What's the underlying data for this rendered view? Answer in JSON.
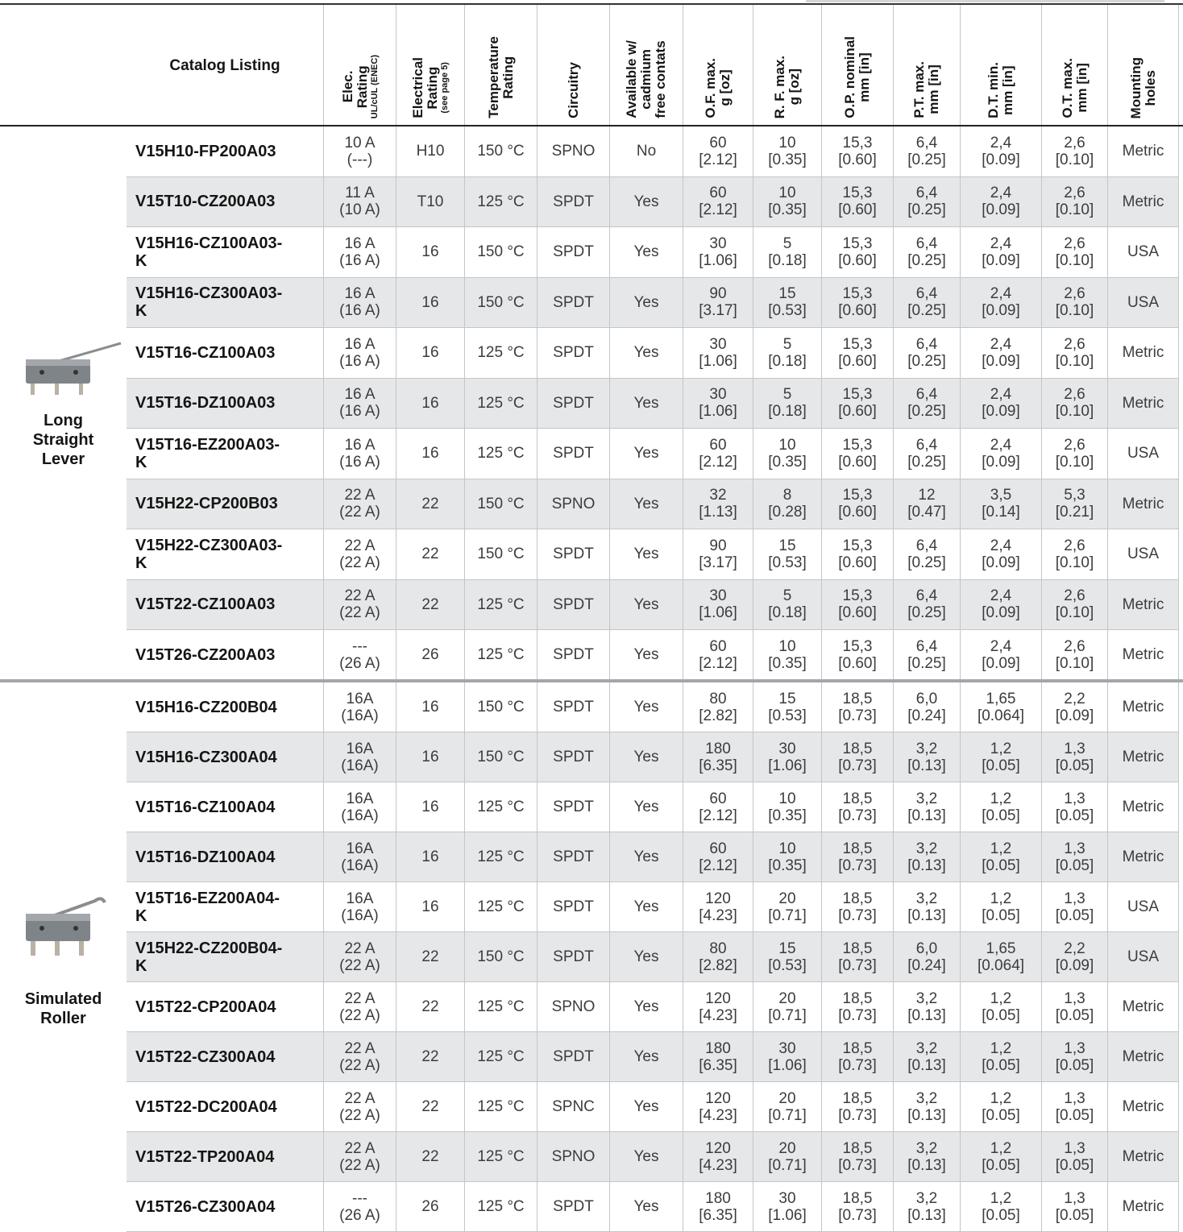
{
  "table": {
    "headers": [
      {
        "title": [
          "Catalog Listing"
        ]
      },
      {
        "title": [
          "Elec.",
          "Rating"
        ],
        "note": "UL/cUL (ENEC)"
      },
      {
        "title": [
          "Electrical",
          "Rating"
        ],
        "note": "(see page 5)"
      },
      {
        "title": [
          "Temperature",
          "Rating"
        ]
      },
      {
        "title": [
          "Circuitry"
        ]
      },
      {
        "title": [
          "Available w/",
          "cadmium",
          "free contats"
        ]
      },
      {
        "title": [
          "O.F. max.",
          "g [oz]"
        ]
      },
      {
        "title": [
          "R. F. max.",
          "g [oz]"
        ]
      },
      {
        "title": [
          "O.P. nominal",
          "mm [in]"
        ]
      },
      {
        "title": [
          "P.T. max.",
          "mm [in]"
        ]
      },
      {
        "title": [
          "D.T. min.",
          "mm [in]"
        ]
      },
      {
        "title": [
          "O.T. max.",
          "mm [in]"
        ]
      },
      {
        "title": [
          "Mounting",
          "holes"
        ]
      }
    ],
    "groups": [
      {
        "label": [
          "Long",
          "Straight",
          "Lever"
        ],
        "rows": [
          [
            "V15H10-FP200A03",
            [
              "10 A",
              "(---)"
            ],
            "H10",
            "150 °C",
            "SPNO",
            "No",
            [
              "60",
              "[2.12]"
            ],
            [
              "10",
              "[0.35]"
            ],
            [
              "15,3",
              "[0.60]"
            ],
            [
              "6,4",
              "[0.25]"
            ],
            [
              "2,4",
              "[0.09]"
            ],
            [
              "2,6",
              "[0.10]"
            ],
            "Metric"
          ],
          [
            "V15T10-CZ200A03",
            [
              "11 A",
              "(10 A)"
            ],
            "T10",
            "125 °C",
            "SPDT",
            "Yes",
            [
              "60",
              "[2.12]"
            ],
            [
              "10",
              "[0.35]"
            ],
            [
              "15,3",
              "[0.60]"
            ],
            [
              "6,4",
              "[0.25]"
            ],
            [
              "2,4",
              "[0.09]"
            ],
            [
              "2,6",
              "[0.10]"
            ],
            "Metric"
          ],
          [
            "V15H16-CZ100A03-K",
            [
              "16 A",
              "(16 A)"
            ],
            "16",
            "150 °C",
            "SPDT",
            "Yes",
            [
              "30",
              "[1.06]"
            ],
            [
              "5",
              "[0.18]"
            ],
            [
              "15,3",
              "[0.60]"
            ],
            [
              "6,4",
              "[0.25]"
            ],
            [
              "2,4",
              "[0.09]"
            ],
            [
              "2,6",
              "[0.10]"
            ],
            "USA"
          ],
          [
            "V15H16-CZ300A03-K",
            [
              "16 A",
              "(16 A)"
            ],
            "16",
            "150 °C",
            "SPDT",
            "Yes",
            [
              "90",
              "[3.17]"
            ],
            [
              "15",
              "[0.53]"
            ],
            [
              "15,3",
              "[0.60]"
            ],
            [
              "6,4",
              "[0.25]"
            ],
            [
              "2,4",
              "[0.09]"
            ],
            [
              "2,6",
              "[0.10]"
            ],
            "USA"
          ],
          [
            "V15T16-CZ100A03",
            [
              "16 A",
              "(16 A)"
            ],
            "16",
            "125 °C",
            "SPDT",
            "Yes",
            [
              "30",
              "[1.06]"
            ],
            [
              "5",
              "[0.18]"
            ],
            [
              "15,3",
              "[0.60]"
            ],
            [
              "6,4",
              "[0.25]"
            ],
            [
              "2,4",
              "[0.09]"
            ],
            [
              "2,6",
              "[0.10]"
            ],
            "Metric"
          ],
          [
            "V15T16-DZ100A03",
            [
              "16 A",
              "(16 A)"
            ],
            "16",
            "125 °C",
            "SPDT",
            "Yes",
            [
              "30",
              "[1.06]"
            ],
            [
              "5",
              "[0.18]"
            ],
            [
              "15,3",
              "[0.60]"
            ],
            [
              "6,4",
              "[0.25]"
            ],
            [
              "2,4",
              "[0.09]"
            ],
            [
              "2,6",
              "[0.10]"
            ],
            "Metric"
          ],
          [
            "V15T16-EZ200A03-K",
            [
              "16 A",
              "(16 A)"
            ],
            "16",
            "125 °C",
            "SPDT",
            "Yes",
            [
              "60",
              "[2.12]"
            ],
            [
              "10",
              "[0.35]"
            ],
            [
              "15,3",
              "[0.60]"
            ],
            [
              "6,4",
              "[0.25]"
            ],
            [
              "2,4",
              "[0.09]"
            ],
            [
              "2,6",
              "[0.10]"
            ],
            "USA"
          ],
          [
            "V15H22-CP200B03",
            [
              "22 A",
              "(22 A)"
            ],
            "22",
            "150 °C",
            "SPNO",
            "Yes",
            [
              "32",
              "[1.13]"
            ],
            [
              "8",
              "[0.28]"
            ],
            [
              "15,3",
              "[0.60]"
            ],
            [
              "12",
              "[0.47]"
            ],
            [
              "3,5",
              "[0.14]"
            ],
            [
              "5,3",
              "[0.21]"
            ],
            "Metric"
          ],
          [
            "V15H22-CZ300A03-K",
            [
              "22 A",
              "(22 A)"
            ],
            "22",
            "150 °C",
            "SPDT",
            "Yes",
            [
              "90",
              "[3.17]"
            ],
            [
              "15",
              "[0.53]"
            ],
            [
              "15,3",
              "[0.60]"
            ],
            [
              "6,4",
              "[0.25]"
            ],
            [
              "2,4",
              "[0.09]"
            ],
            [
              "2,6",
              "[0.10]"
            ],
            "USA"
          ],
          [
            "V15T22-CZ100A03",
            [
              "22 A",
              "(22 A)"
            ],
            "22",
            "125 °C",
            "SPDT",
            "Yes",
            [
              "30",
              "[1.06]"
            ],
            [
              "5",
              "[0.18]"
            ],
            [
              "15,3",
              "[0.60]"
            ],
            [
              "6,4",
              "[0.25]"
            ],
            [
              "2,4",
              "[0.09]"
            ],
            [
              "2,6",
              "[0.10]"
            ],
            "Metric"
          ],
          [
            "V15T26-CZ200A03",
            [
              "---",
              "(26 A)"
            ],
            "26",
            "125 °C",
            "SPDT",
            "Yes",
            [
              "60",
              "[2.12]"
            ],
            [
              "10",
              "[0.35]"
            ],
            [
              "15,3",
              "[0.60]"
            ],
            [
              "6,4",
              "[0.25]"
            ],
            [
              "2,4",
              "[0.09]"
            ],
            [
              "2,6",
              "[0.10]"
            ],
            "Metric"
          ]
        ]
      },
      {
        "label": [
          "Simulated",
          "Roller"
        ],
        "rows": [
          [
            "V15H16-CZ200B04",
            [
              "16A",
              "(16A)"
            ],
            "16",
            "150 °C",
            "SPDT",
            "Yes",
            [
              "80",
              "[2.82]"
            ],
            [
              "15",
              "[0.53]"
            ],
            [
              "18,5",
              "[0.73]"
            ],
            [
              "6,0",
              "[0.24]"
            ],
            [
              "1,65",
              "[0.064]"
            ],
            [
              "2,2",
              "[0.09]"
            ],
            "Metric"
          ],
          [
            "V15H16-CZ300A04",
            [
              "16A",
              "(16A)"
            ],
            "16",
            "150 °C",
            "SPDT",
            "Yes",
            [
              "180",
              "[6.35]"
            ],
            [
              "30",
              "[1.06]"
            ],
            [
              "18,5",
              "[0.73]"
            ],
            [
              "3,2",
              "[0.13]"
            ],
            [
              "1,2",
              "[0.05]"
            ],
            [
              "1,3",
              "[0.05]"
            ],
            "Metric"
          ],
          [
            "V15T16-CZ100A04",
            [
              "16A",
              "(16A)"
            ],
            "16",
            "125 °C",
            "SPDT",
            "Yes",
            [
              "60",
              "[2.12]"
            ],
            [
              "10",
              "[0.35]"
            ],
            [
              "18,5",
              "[0.73]"
            ],
            [
              "3,2",
              "[0.13]"
            ],
            [
              "1,2",
              "[0.05]"
            ],
            [
              "1,3",
              "[0.05]"
            ],
            "Metric"
          ],
          [
            "V15T16-DZ100A04",
            [
              "16A",
              "(16A)"
            ],
            "16",
            "125 °C",
            "SPDT",
            "Yes",
            [
              "60",
              "[2.12]"
            ],
            [
              "10",
              "[0.35]"
            ],
            [
              "18,5",
              "[0.73]"
            ],
            [
              "3,2",
              "[0.13]"
            ],
            [
              "1,2",
              "[0.05]"
            ],
            [
              "1,3",
              "[0.05]"
            ],
            "Metric"
          ],
          [
            "V15T16-EZ200A04-K",
            [
              "16A",
              "(16A)"
            ],
            "16",
            "125 °C",
            "SPDT",
            "Yes",
            [
              "120",
              "[4.23]"
            ],
            [
              "20",
              "[0.71]"
            ],
            [
              "18,5",
              "[0.73]"
            ],
            [
              "3,2",
              "[0.13]"
            ],
            [
              "1,2",
              "[0.05]"
            ],
            [
              "1,3",
              "[0.05]"
            ],
            "USA"
          ],
          [
            "V15H22-CZ200B04-K",
            [
              "22 A",
              "(22 A)"
            ],
            "22",
            "150 °C",
            "SPDT",
            "Yes",
            [
              "80",
              "[2.82]"
            ],
            [
              "15",
              "[0.53]"
            ],
            [
              "18,5",
              "[0.73]"
            ],
            [
              "6,0",
              "[0.24]"
            ],
            [
              "1,65",
              "[0.064]"
            ],
            [
              "2,2",
              "[0.09]"
            ],
            "USA"
          ],
          [
            "V15T22-CP200A04",
            [
              "22 A",
              "(22 A)"
            ],
            "22",
            "125 °C",
            "SPNO",
            "Yes",
            [
              "120",
              "[4.23]"
            ],
            [
              "20",
              "[0.71]"
            ],
            [
              "18,5",
              "[0.73]"
            ],
            [
              "3,2",
              "[0.13]"
            ],
            [
              "1,2",
              "[0.05]"
            ],
            [
              "1,3",
              "[0.05]"
            ],
            "Metric"
          ],
          [
            "V15T22-CZ300A04",
            [
              "22 A",
              "(22 A)"
            ],
            "22",
            "125 °C",
            "SPDT",
            "Yes",
            [
              "180",
              "[6.35]"
            ],
            [
              "30",
              "[1.06]"
            ],
            [
              "18,5",
              "[0.73]"
            ],
            [
              "3,2",
              "[0.13]"
            ],
            [
              "1,2",
              "[0.05]"
            ],
            [
              "1,3",
              "[0.05]"
            ],
            "Metric"
          ],
          [
            "V15T22-DC200A04",
            [
              "22 A",
              "(22 A)"
            ],
            "22",
            "125 °C",
            "SPNC",
            "Yes",
            [
              "120",
              "[4.23]"
            ],
            [
              "20",
              "[0.71]"
            ],
            [
              "18,5",
              "[0.73]"
            ],
            [
              "3,2",
              "[0.13]"
            ],
            [
              "1,2",
              "[0.05]"
            ],
            [
              "1,3",
              "[0.05]"
            ],
            "Metric"
          ],
          [
            "V15T22-TP200A04",
            [
              "22 A",
              "(22 A)"
            ],
            "22",
            "125 °C",
            "SPNO",
            "Yes",
            [
              "120",
              "[4.23]"
            ],
            [
              "20",
              "[0.71]"
            ],
            [
              "18,5",
              "[0.73]"
            ],
            [
              "3,2",
              "[0.13]"
            ],
            [
              "1,2",
              "[0.05]"
            ],
            [
              "1,3",
              "[0.05]"
            ],
            "Metric"
          ],
          [
            "V15T26-CZ300A04",
            [
              "---",
              "(26 A)"
            ],
            "26",
            "125 °C",
            "SPDT",
            "Yes",
            [
              "180",
              "[6.35]"
            ],
            [
              "30",
              "[1.06]"
            ],
            [
              "18,5",
              "[0.73]"
            ],
            [
              "3,2",
              "[0.13]"
            ],
            [
              "1,2",
              "[0.05]"
            ],
            [
              "1,3",
              "[0.05]"
            ],
            "Metric"
          ]
        ]
      }
    ]
  }
}
